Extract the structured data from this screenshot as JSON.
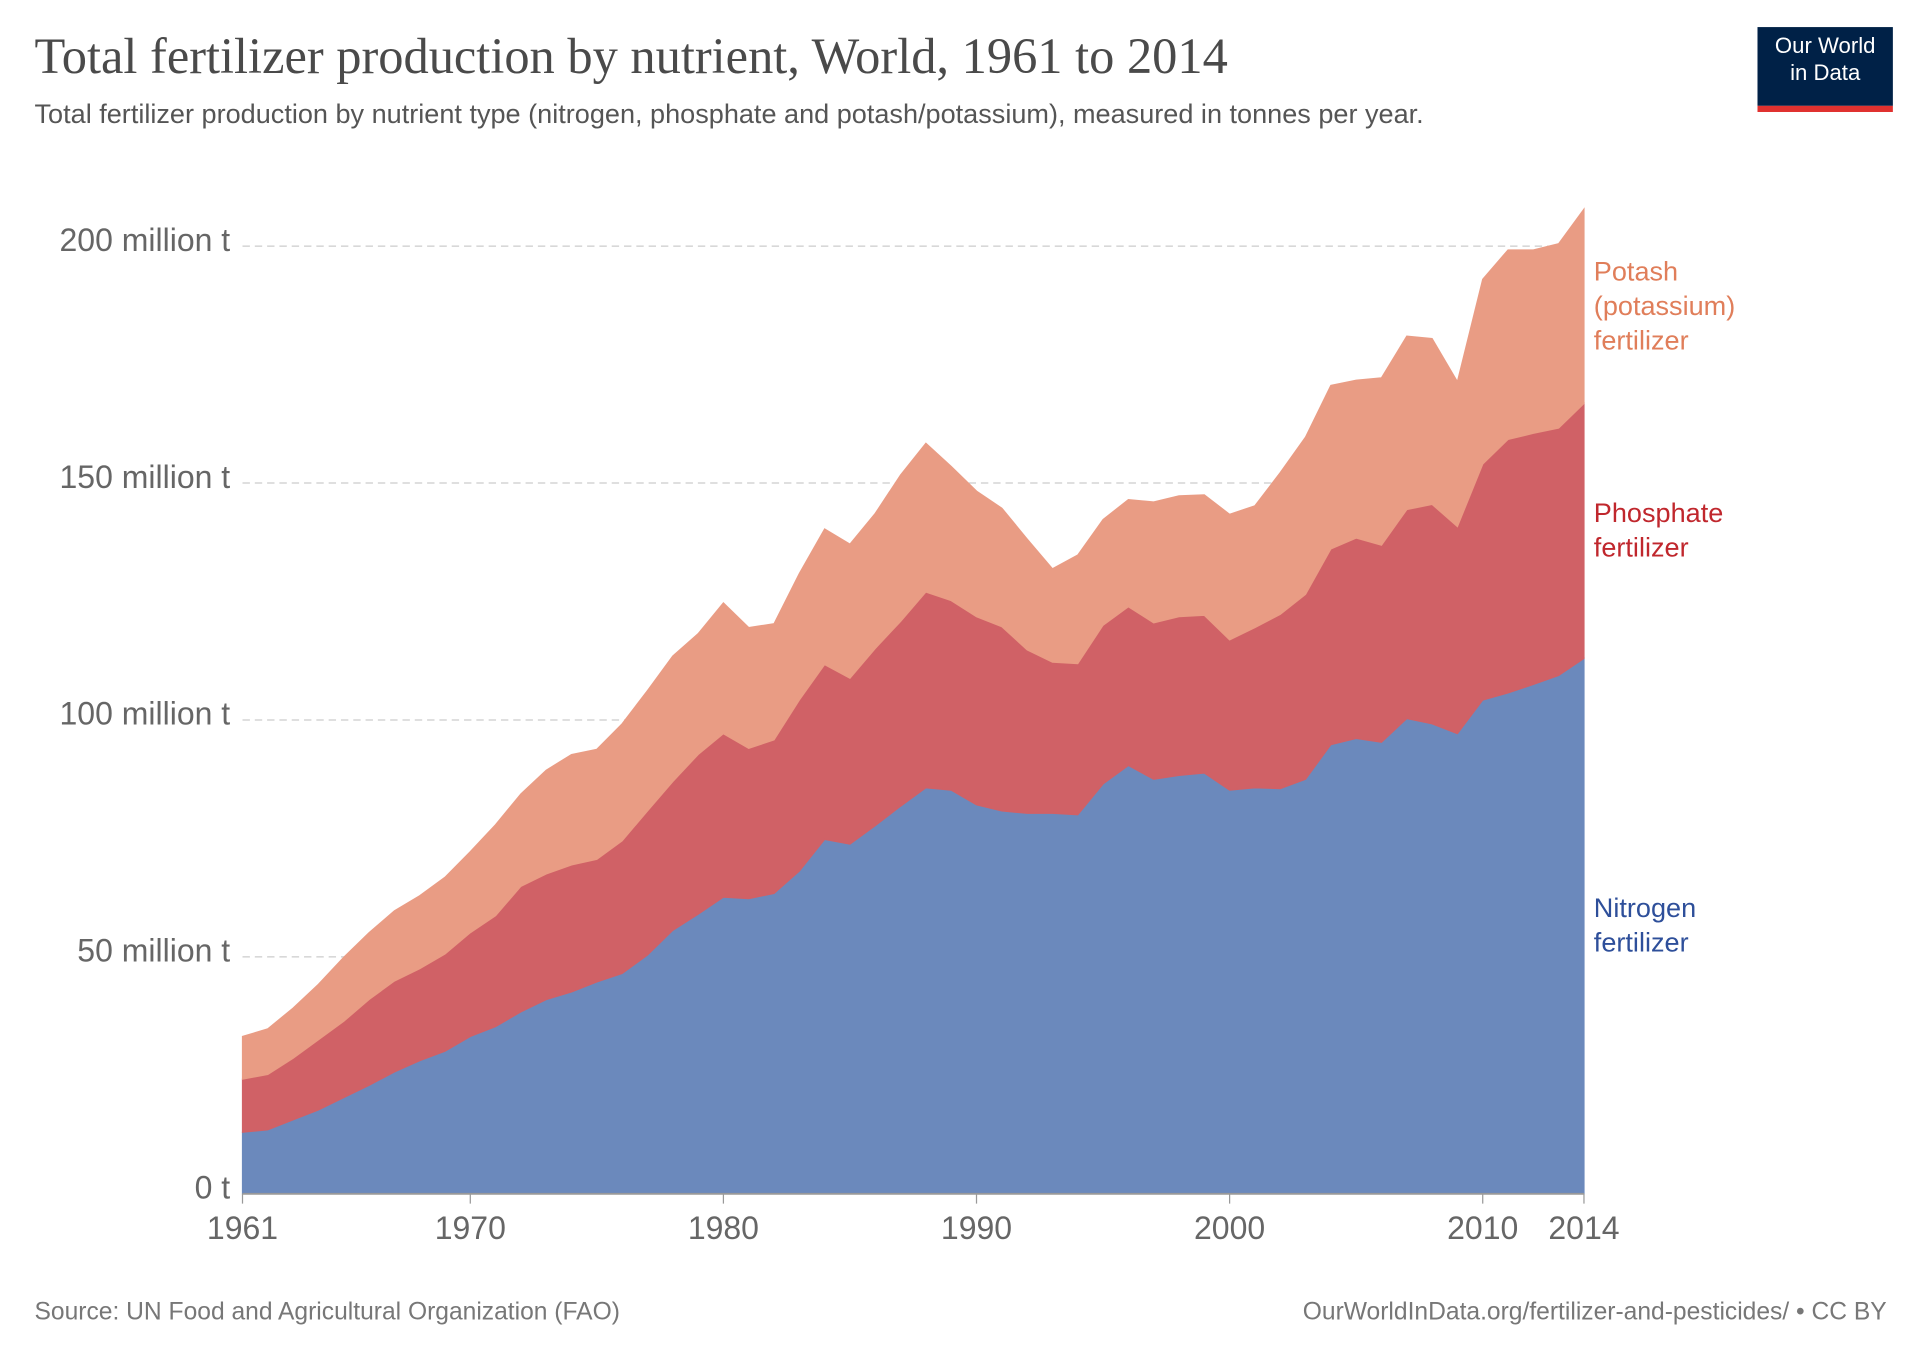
{
  "chart_data": {
    "type": "area",
    "stacked": true,
    "title": "Total fertilizer production by nutrient, World, 1961 to 2014",
    "subtitle": "Total fertilizer production by nutrient type (nitrogen, phosphate and potash/potassium), measured in tonnes per year.",
    "source": "Source: UN Food and Agricultural Organization (FAO)",
    "license": "OurWorldInData.org/fertilizer-and-pesticides/ • CC BY",
    "logo": "Our World in Data",
    "grid": true,
    "xlim": [
      1961,
      2014
    ],
    "xticks": [
      1961,
      1970,
      1980,
      1990,
      2000,
      2010,
      2014
    ],
    "ylim": [
      0,
      210
    ],
    "yticks": [
      {
        "value": 0,
        "label": "0 t"
      },
      {
        "value": 50,
        "label": "50 million t"
      },
      {
        "value": 100,
        "label": "100 million t"
      },
      {
        "value": 150,
        "label": "150 million t"
      },
      {
        "value": 200,
        "label": "200 million t"
      }
    ],
    "x": [
      1961,
      1962,
      1963,
      1964,
      1965,
      1966,
      1967,
      1968,
      1969,
      1970,
      1971,
      1972,
      1973,
      1974,
      1975,
      1976,
      1977,
      1978,
      1979,
      1980,
      1981,
      1982,
      1983,
      1984,
      1985,
      1986,
      1987,
      1988,
      1989,
      1990,
      1991,
      1992,
      1993,
      1994,
      1995,
      1996,
      1997,
      1998,
      1999,
      2000,
      2001,
      2002,
      2003,
      2004,
      2005,
      2006,
      2007,
      2008,
      2009,
      2010,
      2011,
      2012,
      2013,
      2014
    ],
    "series": [
      {
        "name": "Nitrogen fertilizer",
        "color": "#6f8fc4",
        "label_color": "#2e4f9a",
        "values": [
          13.0,
          13.5,
          15.6,
          17.7,
          20.3,
          22.9,
          25.7,
          28.1,
          30.1,
          33.2,
          35.3,
          38.4,
          41.0,
          42.6,
          44.7,
          46.5,
          50.4,
          55.6,
          59.0,
          62.6,
          62.3,
          63.4,
          68.1,
          74.8,
          73.8,
          77.7,
          81.8,
          85.7,
          85.2,
          82.1,
          80.8,
          80.3,
          80.3,
          80.0,
          86.5,
          90.4,
          87.5,
          88.3,
          88.8,
          85.2,
          85.7,
          85.5,
          87.5,
          94.8,
          96.1,
          95.3,
          100.3,
          99.2,
          97.1,
          104.2,
          105.7,
          107.5,
          109.4,
          113.0
        ]
      },
      {
        "name": "Phosphate fertilizer",
        "color": "#d9656a",
        "label_color": "#c0272d",
        "values": [
          11.2,
          11.7,
          13.0,
          14.8,
          16.1,
          18.1,
          19.2,
          19.4,
          20.5,
          21.9,
          23.4,
          26.5,
          26.5,
          26.8,
          25.9,
          28.0,
          30.4,
          31.4,
          33.7,
          34.5,
          31.7,
          32.4,
          36.1,
          36.9,
          35.0,
          37.4,
          39.0,
          41.3,
          40.0,
          39.7,
          38.9,
          34.5,
          31.9,
          31.9,
          33.5,
          33.5,
          33.0,
          33.5,
          33.3,
          31.7,
          33.8,
          36.8,
          39.0,
          41.3,
          42.3,
          41.6,
          44.1,
          46.3,
          43.7,
          49.8,
          53.5,
          53.0,
          52.2,
          53.8
        ]
      },
      {
        "name": "Potash (potassium) fertilizer",
        "color": "#f3a28a",
        "label_color": "#e07e5a",
        "values": [
          9.0,
          9.6,
          10.6,
          11.7,
          13.5,
          14.1,
          14.8,
          15.4,
          16.2,
          17.1,
          19.2,
          19.5,
          21.9,
          23.3,
          23.2,
          24.7,
          25.4,
          26.5,
          25.5,
          27.6,
          25.5,
          24.5,
          26.7,
          28.6,
          28.3,
          28.5,
          30.9,
          31.4,
          28.3,
          26.5,
          25.0,
          23.4,
          19.7,
          22.9,
          22.3,
          22.6,
          25.5,
          25.5,
          25.4,
          26.5,
          25.7,
          29.9,
          33.2,
          34.5,
          33.3,
          35.3,
          36.6,
          35.0,
          30.6,
          39.0,
          40.0,
          38.7,
          38.9,
          41.0
        ]
      }
    ]
  }
}
